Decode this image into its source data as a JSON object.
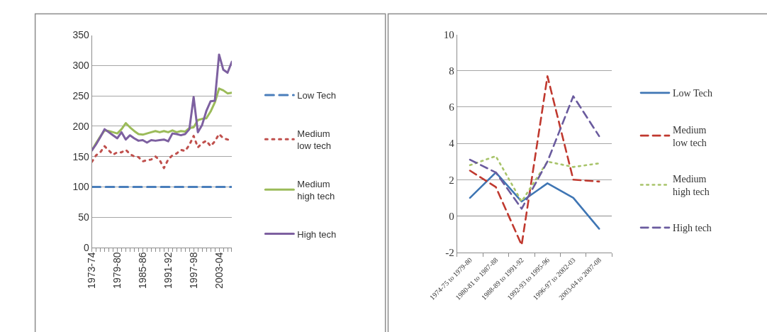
{
  "chart_data": [
    {
      "type": "line",
      "categories": [
        "1973-74",
        null,
        null,
        null,
        null,
        null,
        "1979-80",
        null,
        null,
        null,
        null,
        null,
        "1985-86",
        null,
        null,
        null,
        null,
        null,
        "1991-92",
        null,
        null,
        null,
        null,
        null,
        "1997-98",
        null,
        null,
        null,
        null,
        null,
        "2003-04",
        null,
        null,
        null
      ],
      "series": [
        {
          "name": "Low Tech",
          "color": "#4a7ebb",
          "line_style": "dashed",
          "values": [
            100,
            100,
            100,
            100,
            100,
            100,
            100,
            100,
            100,
            100,
            100,
            100,
            100,
            100,
            100,
            100,
            100,
            100,
            100,
            100,
            100,
            100,
            100,
            100,
            100,
            100,
            100,
            100,
            100,
            100,
            100,
            100,
            100,
            100
          ]
        },
        {
          "name": "Medium low tech",
          "color": "#c0504d",
          "line_style": "dotted",
          "values": [
            141,
            152,
            157,
            167,
            160,
            153,
            157,
            157,
            161,
            154,
            150,
            149,
            142,
            144,
            145,
            150,
            144,
            131,
            145,
            152,
            155,
            161,
            159,
            169,
            184,
            165,
            172,
            176,
            167,
            175,
            187,
            180,
            178,
            176
          ]
        },
        {
          "name": "Medium high tech",
          "color": "#9bbb59",
          "line_style": "solid",
          "values": [
            160,
            172,
            183,
            193,
            192,
            190,
            188,
            195,
            205,
            198,
            192,
            187,
            186,
            188,
            190,
            192,
            190,
            192,
            190,
            193,
            190,
            192,
            191,
            197,
            198,
            210,
            212,
            213,
            224,
            239,
            262,
            259,
            254,
            255
          ]
        },
        {
          "name": "High tech",
          "color": "#7d60a0",
          "line_style": "solid",
          "values": [
            160,
            170,
            182,
            195,
            190,
            185,
            180,
            190,
            178,
            185,
            180,
            176,
            177,
            173,
            177,
            176,
            177,
            178,
            175,
            188,
            187,
            185,
            187,
            195,
            248,
            190,
            202,
            225,
            241,
            242,
            318,
            293,
            288,
            306
          ]
        }
      ],
      "ylim": [
        0,
        350
      ],
      "yticks": [
        0,
        50,
        100,
        150,
        200,
        250,
        300,
        350
      ],
      "grid": "y",
      "legend": "right"
    },
    {
      "type": "line",
      "categories": [
        "1974-75 to 1979-80",
        "1980-81 to 1987-88",
        "1988-89 to 1991-92",
        "1992-93 to 1995-96",
        "1996-97 to 2002-03",
        "2003-04 to 2007-08"
      ],
      "series": [
        {
          "name": "Low Tech",
          "color": "#3f76b4",
          "line_style": "solid",
          "values": [
            1.0,
            2.4,
            0.8,
            1.8,
            1.0,
            -0.7
          ]
        },
        {
          "name": "Medium low tech",
          "color": "#c0392f",
          "line_style": "dashed",
          "values": [
            2.5,
            1.6,
            -1.6,
            7.7,
            2.0,
            1.9
          ]
        },
        {
          "name": "Medium high tech",
          "color": "#a8c46a",
          "line_style": "dotted",
          "values": [
            2.8,
            3.3,
            0.8,
            3.0,
            2.7,
            2.9
          ]
        },
        {
          "name": "High tech",
          "color": "#6a5b9e",
          "line_style": "dashed",
          "values": [
            3.1,
            2.4,
            0.4,
            3.0,
            6.6,
            4.4
          ]
        }
      ],
      "ylim": [
        -2,
        10
      ],
      "yticks": [
        -2,
        0,
        2,
        4,
        6,
        8,
        10
      ],
      "grid": "y",
      "legend": "right"
    }
  ]
}
